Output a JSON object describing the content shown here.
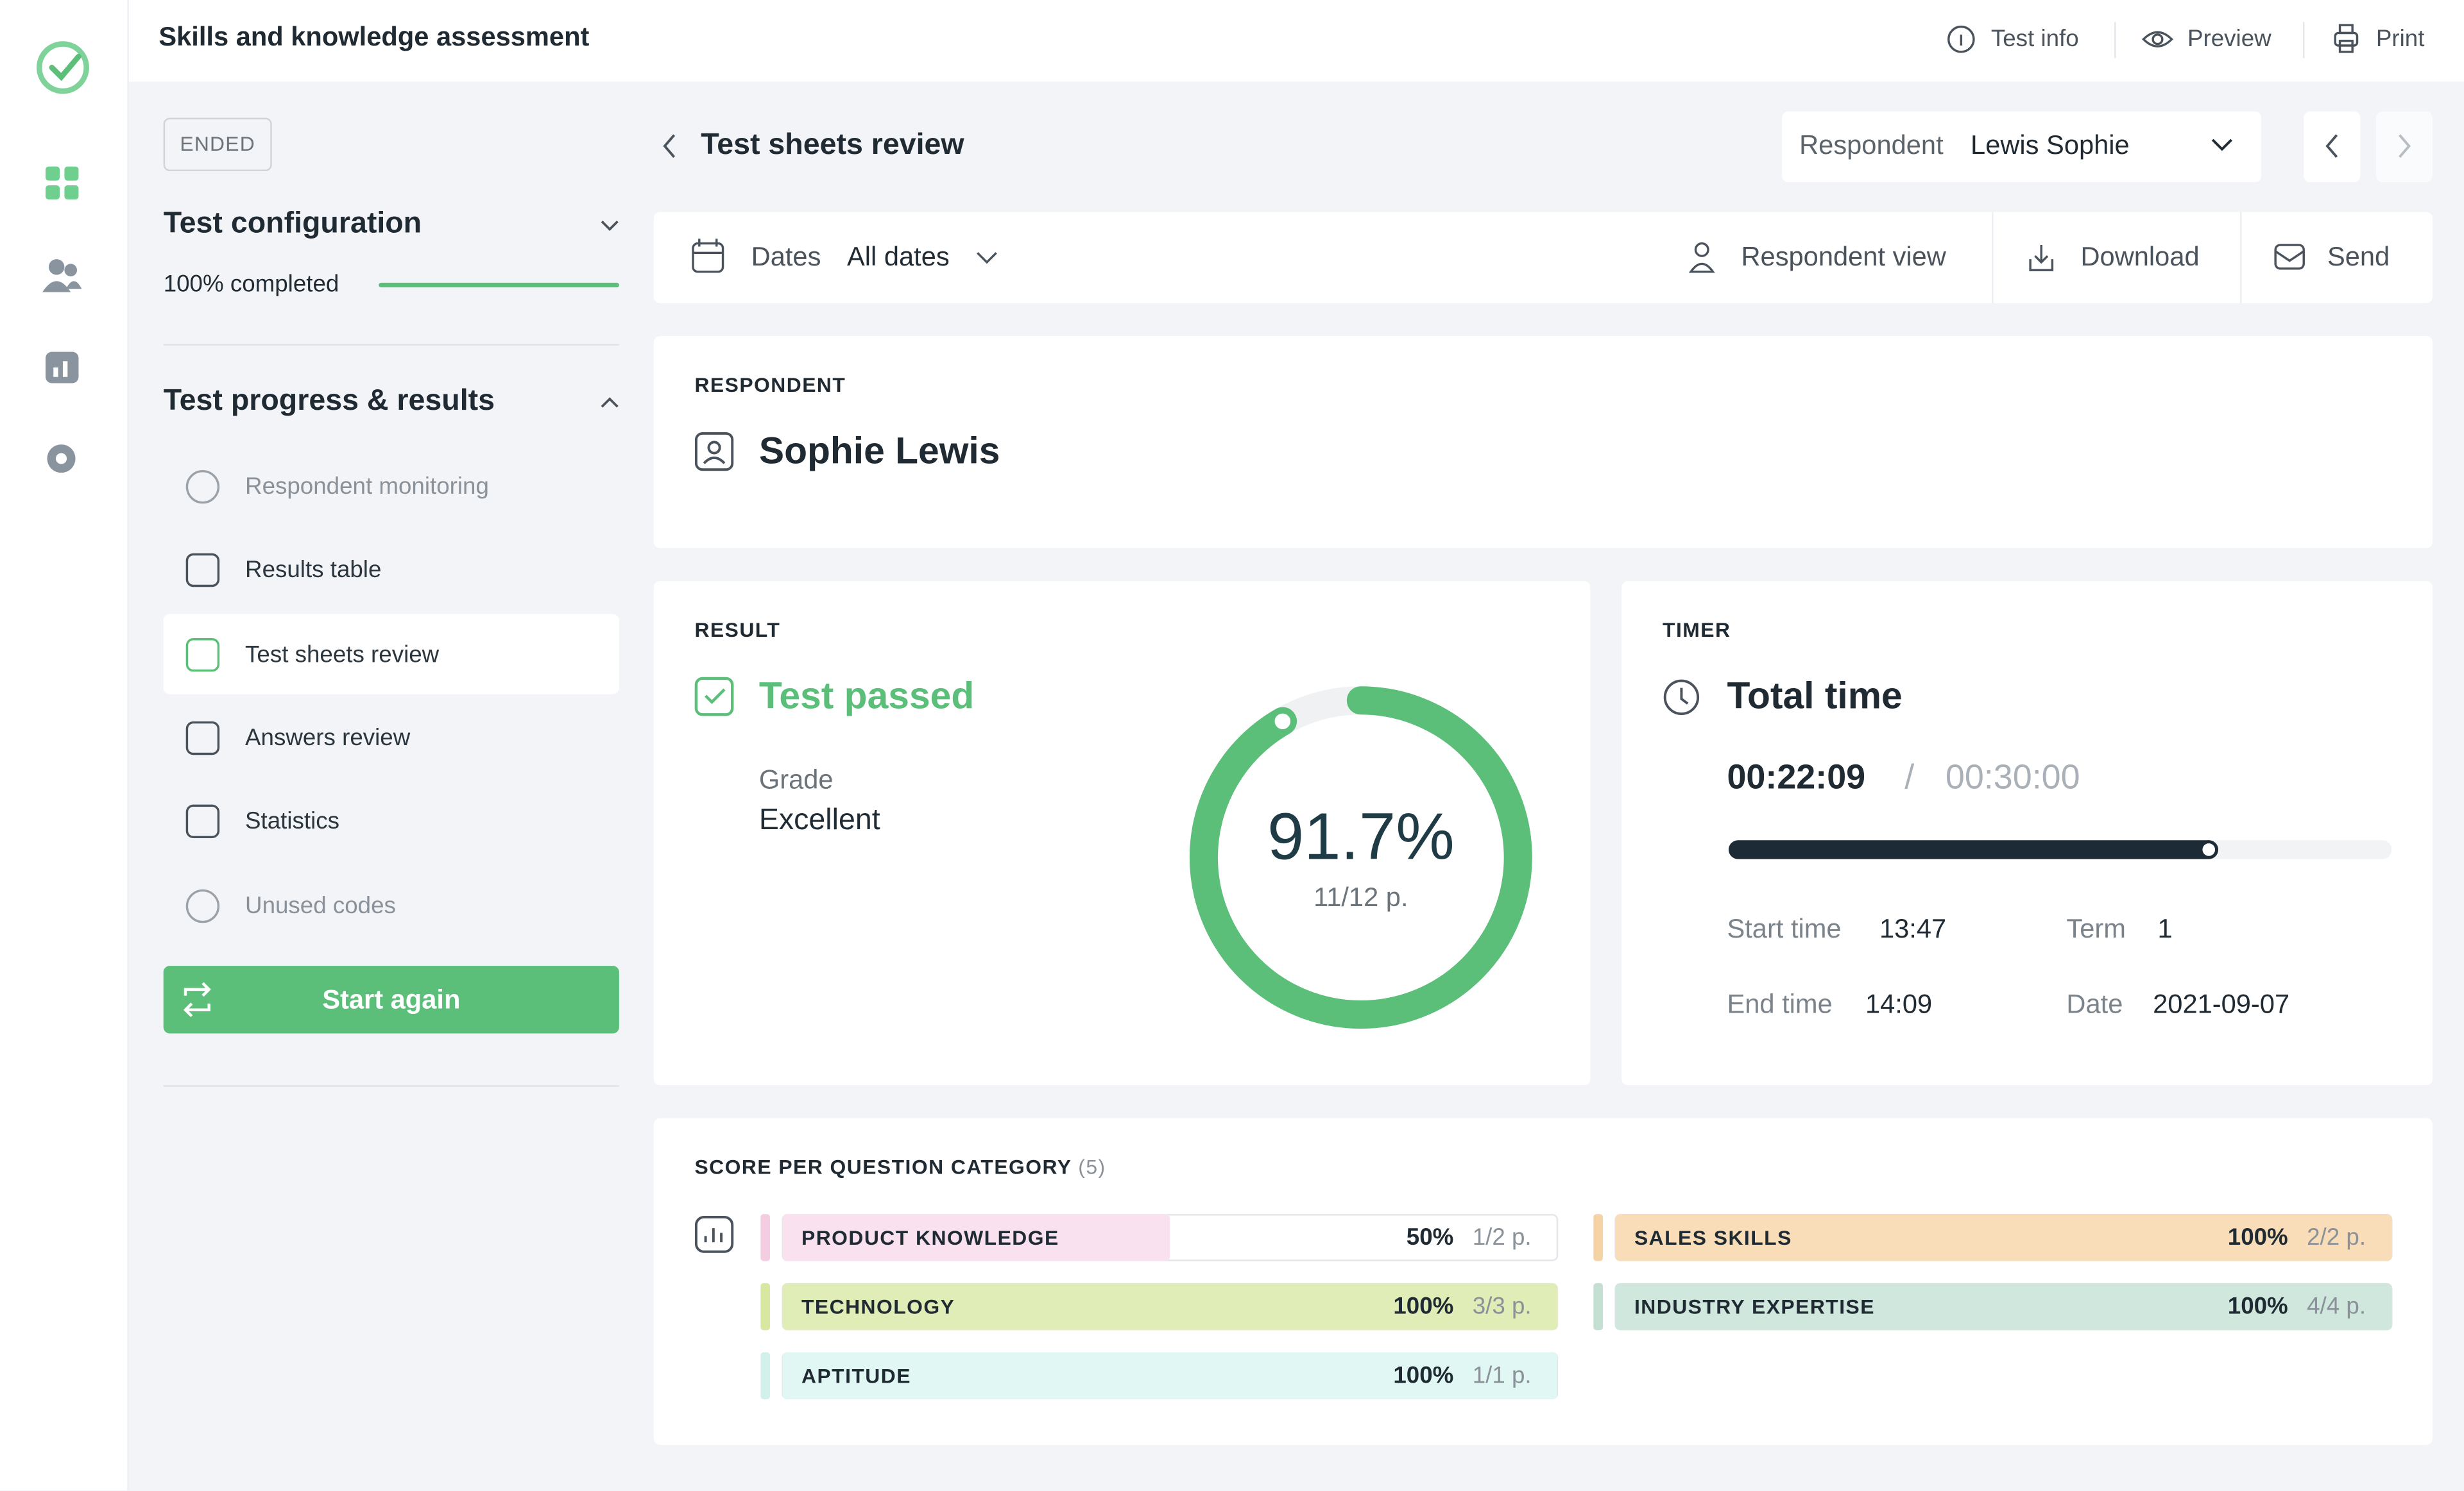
{
  "app": {
    "title": "Skills and knowledge assessment",
    "actions": [
      "Test info",
      "Preview",
      "Print"
    ]
  },
  "sidebar": {
    "status": "ENDED",
    "config_title": "Test configuration",
    "config_progress": "100% completed",
    "progress_title": "Test progress & results",
    "menu": [
      "Respondent monitoring",
      "Results table",
      "Test sheets review",
      "Answers review",
      "Statistics",
      "Unused codes"
    ],
    "button": "Start again"
  },
  "page": {
    "title": "Test sheets review",
    "respondent_label": "Respondent",
    "respondent_value": "Lewis Sophie"
  },
  "toolbar": {
    "dates_label": "Dates",
    "dates_value": "All dates",
    "actions": [
      "Respondent view",
      "Download",
      "Send"
    ]
  },
  "respondent": {
    "heading": "RESPONDENT",
    "name": "Sophie Lewis"
  },
  "result": {
    "heading": "RESULT",
    "status": "Test passed",
    "grade_label": "Grade",
    "grade": "Excellent",
    "score": 91.7,
    "score_label": "91.7%",
    "points": "11/12 p."
  },
  "timer": {
    "heading": "TIMER",
    "title": "Total time",
    "elapsed": "00:22:09",
    "separator": "/",
    "limit": "00:30:00",
    "start_label": "Start time",
    "start": "13:47",
    "end_label": "End time",
    "end": "14:09",
    "term_label": "Term",
    "term": 1,
    "date_label": "Date",
    "date": "2021-09-07"
  },
  "scores": {
    "heading": "SCORE PER QUESTION CATEGORY",
    "count": "(5)",
    "categories": [
      {
        "name": "PRODUCT KNOWLEDGE",
        "percent": 50,
        "percent_label": "50%",
        "points": "1/2 p.",
        "color": "#f9e1ef",
        "accent": "#f4cde3"
      },
      {
        "name": "SALES SKILLS",
        "percent": 100,
        "percent_label": "100%",
        "points": "2/2 p.",
        "color": "#f8ddb8",
        "accent": "#f6d3a4"
      },
      {
        "name": "TECHNOLOGY",
        "percent": 100,
        "percent_label": "100%",
        "points": "3/3 p.",
        "color": "#e1edb6",
        "accent": "#d8e8a0"
      },
      {
        "name": "INDUSTRY EXPERTISE",
        "percent": 100,
        "percent_label": "100%",
        "points": "4/4 p.",
        "color": "#d0e7dd",
        "accent": "#c3e0d3"
      },
      {
        "name": "APTITUDE",
        "percent": 100,
        "percent_label": "100%",
        "points": "1/1 p.",
        "color": "#e1f7f3",
        "accent": "#d2f1eb"
      }
    ]
  }
}
